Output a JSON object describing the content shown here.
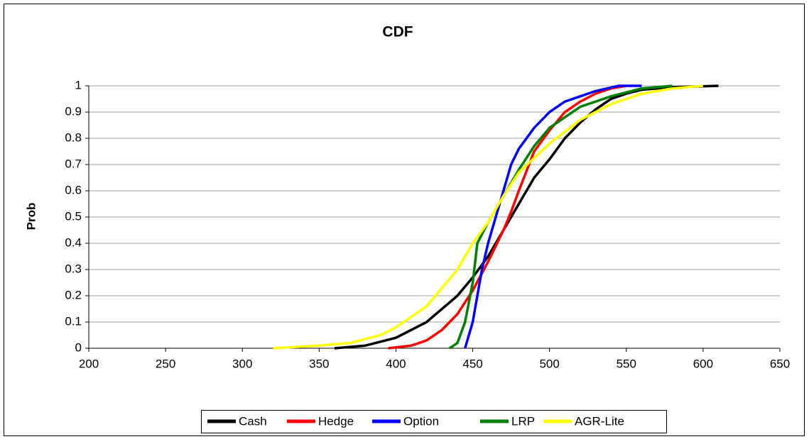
{
  "chart_data": {
    "type": "line",
    "title": "CDF",
    "y_label": "Prob",
    "xlim": [
      200,
      650
    ],
    "xticks": [
      200,
      250,
      300,
      350,
      400,
      450,
      500,
      550,
      600,
      650
    ],
    "ylim": [
      0,
      1
    ],
    "yticks": [
      0,
      0.1,
      0.2,
      0.3,
      0.4,
      0.5,
      0.6,
      0.7,
      0.8,
      0.9,
      1
    ],
    "grid": true,
    "legend": "bottom",
    "series": [
      {
        "name": "Cash",
        "color": "#000000",
        "x": [
          360,
          380,
          400,
          420,
          440,
          450,
          460,
          470,
          480,
          490,
          500,
          510,
          520,
          530,
          540,
          550,
          560,
          580,
          610
        ],
        "values": [
          0,
          0.01,
          0.04,
          0.1,
          0.2,
          0.27,
          0.35,
          0.45,
          0.55,
          0.65,
          0.72,
          0.8,
          0.86,
          0.91,
          0.95,
          0.97,
          0.985,
          0.995,
          1
        ]
      },
      {
        "name": "Hedge",
        "color": "#ff0000",
        "x": [
          395,
          410,
          420,
          430,
          440,
          450,
          460,
          470,
          475,
          480,
          490,
          500,
          510,
          520,
          530,
          540,
          550
        ],
        "values": [
          0,
          0.01,
          0.03,
          0.07,
          0.13,
          0.22,
          0.33,
          0.45,
          0.52,
          0.6,
          0.75,
          0.83,
          0.9,
          0.94,
          0.97,
          0.99,
          1
        ]
      },
      {
        "name": "Option",
        "color": "#0000ff",
        "x": [
          445,
          450,
          453,
          456,
          460,
          465,
          470,
          475,
          480,
          490,
          500,
          510,
          520,
          530,
          545,
          560
        ],
        "values": [
          0,
          0.1,
          0.2,
          0.3,
          0.4,
          0.5,
          0.6,
          0.7,
          0.76,
          0.84,
          0.9,
          0.94,
          0.96,
          0.98,
          1,
          1
        ]
      },
      {
        "name": "LRP",
        "color": "#008000",
        "x": [
          435,
          440,
          445,
          450,
          453,
          460,
          470,
          480,
          490,
          500,
          520,
          540,
          560,
          580
        ],
        "values": [
          0,
          0.02,
          0.1,
          0.25,
          0.4,
          0.48,
          0.58,
          0.68,
          0.77,
          0.84,
          0.92,
          0.96,
          0.99,
          1
        ]
      },
      {
        "name": "AGR-Lite",
        "color": "#ffff00",
        "x": [
          320,
          350,
          370,
          390,
          400,
          420,
          440,
          450,
          460,
          470,
          480,
          500,
          520,
          540,
          560,
          580,
          600
        ],
        "values": [
          0,
          0.01,
          0.02,
          0.05,
          0.08,
          0.16,
          0.3,
          0.4,
          0.48,
          0.58,
          0.67,
          0.78,
          0.87,
          0.93,
          0.97,
          0.99,
          1
        ]
      }
    ]
  }
}
